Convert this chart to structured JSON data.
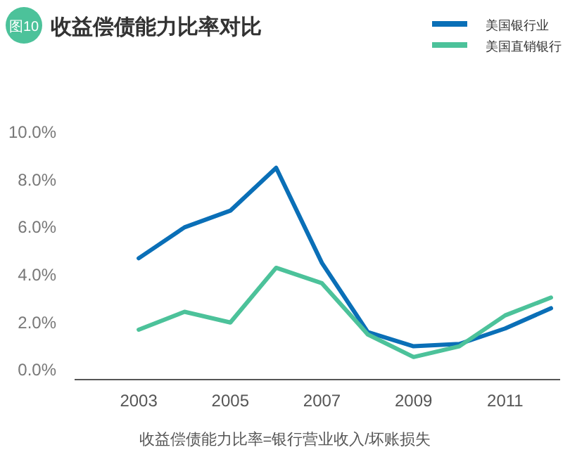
{
  "chart_data": {
    "type": "line",
    "title": "收益偿债能力比率对比",
    "annotations": [
      "图10",
      "收益偿债能力比率=银行营业收入/坏账损失"
    ],
    "x": [
      2003,
      2004,
      2005,
      2006,
      2007,
      2008,
      2009,
      2010,
      2011,
      2012
    ],
    "series": [
      {
        "name": "美国银行业",
        "color": "#0a6fb7",
        "values": [
          4.7,
          6.0,
          6.7,
          8.5,
          4.5,
          1.6,
          1.0,
          1.1,
          1.75,
          2.6
        ]
      },
      {
        "name": "美国直销银行",
        "color": "#4cc29a",
        "values": [
          1.7,
          2.45,
          2.0,
          4.3,
          3.65,
          1.5,
          0.55,
          1.0,
          2.3,
          3.05
        ]
      }
    ],
    "xlim": [
      2001.6,
      2012.2
    ],
    "xticks": [
      2003,
      2005,
      2007,
      2009,
      2011
    ],
    "ylim": [
      -0.4,
      10
    ],
    "yticks": [
      {
        "value": 0,
        "label": "0.0%"
      },
      {
        "value": 2,
        "label": "2.0%"
      },
      {
        "value": 4,
        "label": "4.0%"
      },
      {
        "value": 6,
        "label": "6.0%"
      },
      {
        "value": 8,
        "label": "8.0%"
      },
      {
        "value": 10,
        "label": "10.0%"
      }
    ],
    "grid": false,
    "legend": "top right",
    "line_style": "solid"
  }
}
